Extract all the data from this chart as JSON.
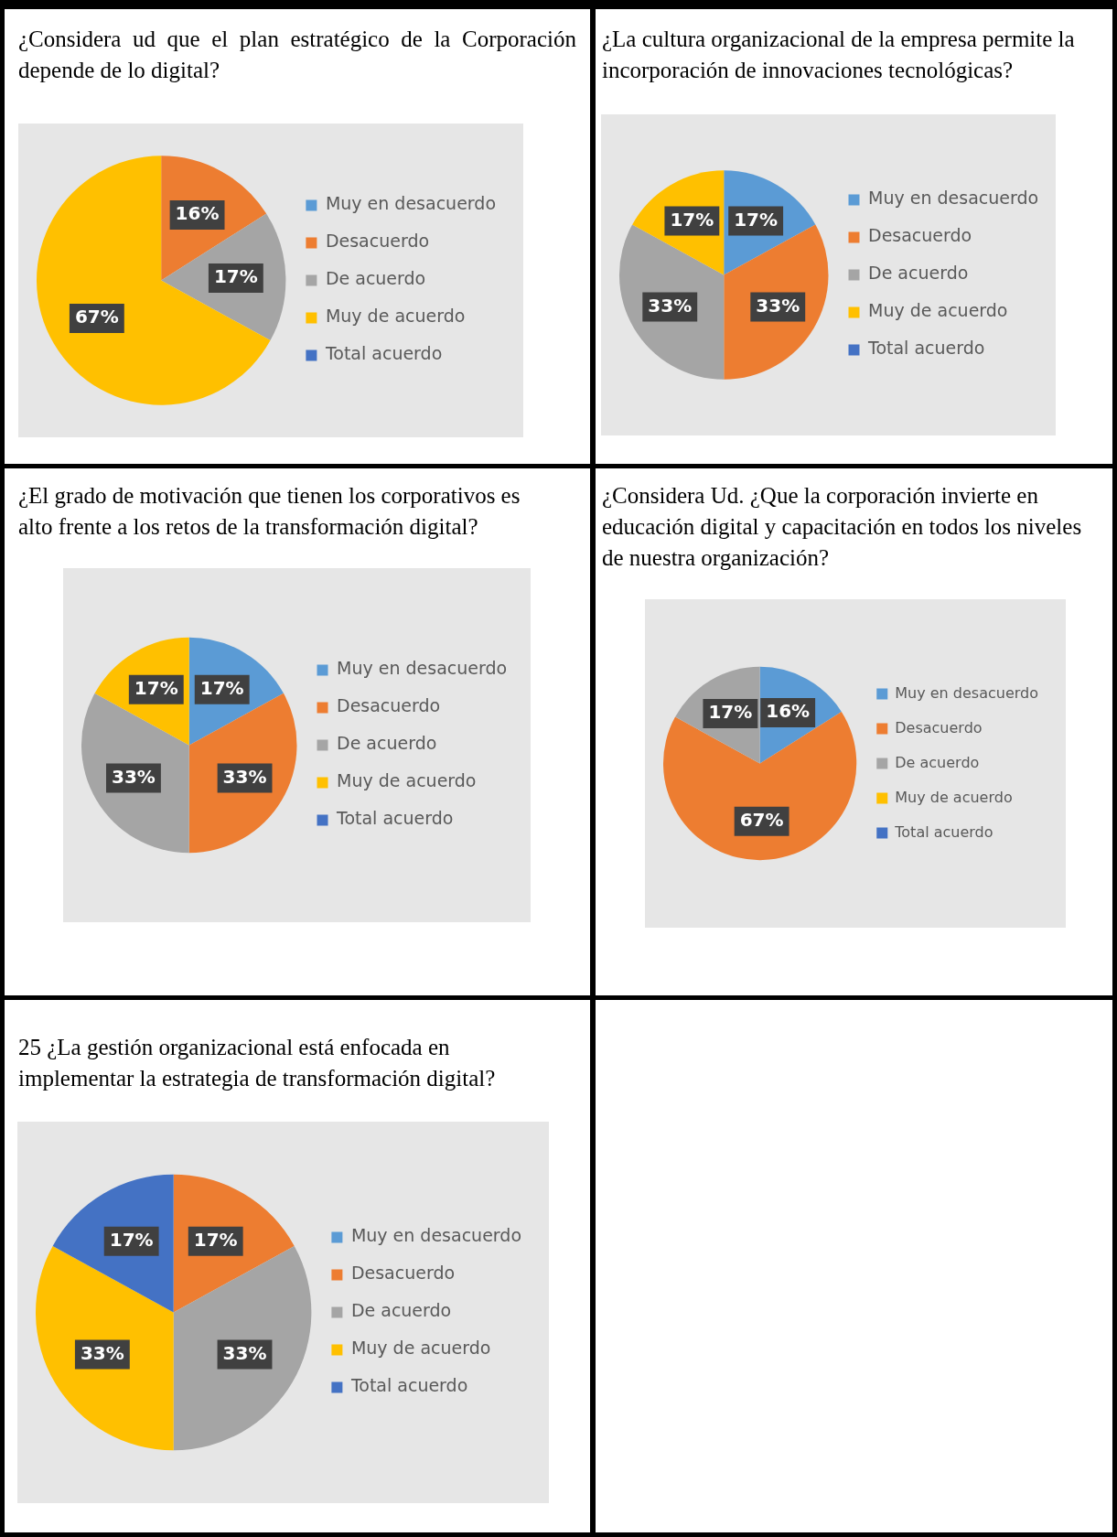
{
  "chart_data": [
    {
      "type": "pie",
      "title": "¿Considera ud que el plan estratégico de la Corporación depende de lo digital?",
      "categories": [
        "Muy en desacuerdo",
        "Desacuerdo",
        "De acuerdo",
        "Muy de acuerdo",
        "Total acuerdo"
      ],
      "values": [
        0,
        16,
        17,
        67,
        0
      ],
      "colors": [
        "#5b9bd5",
        "#ed7d31",
        "#a5a5a5",
        "#ffc000",
        "#4472c4"
      ],
      "value_labels": [
        null,
        "16%",
        "17%",
        "67%",
        null
      ],
      "legend": "right"
    },
    {
      "type": "pie",
      "title": "¿La cultura organizacional de la empresa permite la incorporación de innovaciones tecnológicas?",
      "categories": [
        "Muy en desacuerdo",
        "Desacuerdo",
        "De acuerdo",
        "Muy de acuerdo",
        "Total acuerdo"
      ],
      "values": [
        17,
        33,
        33,
        17,
        0
      ],
      "colors": [
        "#5b9bd5",
        "#ed7d31",
        "#a5a5a5",
        "#ffc000",
        "#4472c4"
      ],
      "value_labels": [
        "17%",
        "33%",
        "33%",
        "17%",
        null
      ],
      "legend": "right"
    },
    {
      "type": "pie",
      "title": "¿El grado de motivación que tienen los corporativos es alto frente a los retos de la transformación digital?",
      "categories": [
        "Muy en desacuerdo",
        "Desacuerdo",
        "De acuerdo",
        "Muy de acuerdo",
        "Total acuerdo"
      ],
      "values": [
        17,
        33,
        33,
        17,
        0
      ],
      "colors": [
        "#5b9bd5",
        "#ed7d31",
        "#a5a5a5",
        "#ffc000",
        "#4472c4"
      ],
      "value_labels": [
        "17%",
        "33%",
        "33%",
        "17%",
        null
      ],
      "legend": "right"
    },
    {
      "type": "pie",
      "title": "¿Considera Ud. ¿Que la corporación invierte en educación digital y capacitación en todos los niveles de nuestra organización?",
      "categories": [
        "Muy en desacuerdo",
        "Desacuerdo",
        "De acuerdo",
        "Muy de acuerdo",
        "Total acuerdo"
      ],
      "values": [
        16,
        67,
        17,
        0,
        0
      ],
      "colors": [
        "#5b9bd5",
        "#ed7d31",
        "#a5a5a5",
        "#ffc000",
        "#4472c4"
      ],
      "value_labels": [
        "16%",
        "67%",
        "17%",
        null,
        null
      ],
      "legend": "right"
    },
    {
      "type": "pie",
      "title": "25 ¿La gestión organizacional está enfocada en implementar la estrategia de transformación digital?",
      "categories": [
        "Muy en desacuerdo",
        "Desacuerdo",
        "De acuerdo",
        "Muy de acuerdo",
        "Total acuerdo"
      ],
      "values": [
        0,
        17,
        33,
        33,
        17
      ],
      "colors": [
        "#5b9bd5",
        "#ed7d31",
        "#a5a5a5",
        "#ffc000",
        "#4472c4"
      ],
      "value_labels": [
        null,
        "17%",
        "33%",
        "33%",
        "17%"
      ],
      "legend": "right"
    }
  ]
}
